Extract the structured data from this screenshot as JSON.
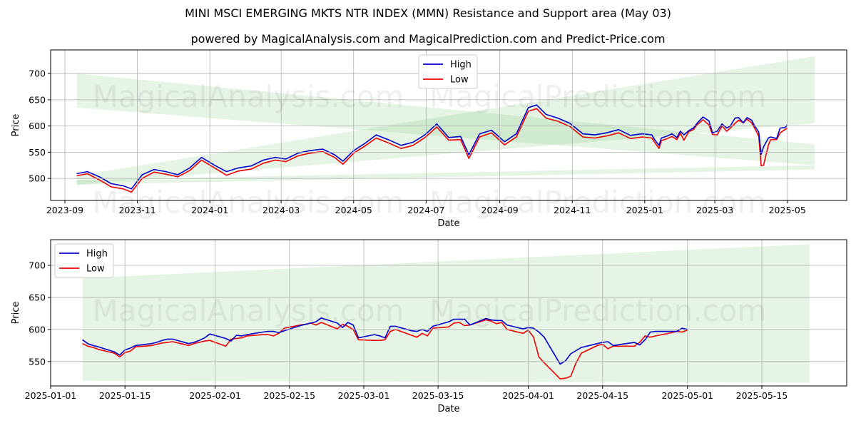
{
  "title": "MINI MSCI EMERGING MKTS NTR INDEX (MMN) Resistance and Support area (May 03)",
  "subtitle": "powered by MagicalAnalysis.com and MagicalPrediction.com and Predict-Price.com",
  "watermarks": [
    "MagicalAnalysis.com",
    "MagicalPrediction.com"
  ],
  "colors": {
    "high": "#0000cc",
    "low": "#ee0000",
    "band": "#4caf50"
  },
  "chart_data": [
    {
      "type": "line",
      "xlabel": "Date",
      "ylabel": "Price",
      "xlim": [
        "2023-08-20",
        "2025-06-20"
      ],
      "ylim": [
        458,
        745
      ],
      "xticks": [
        "2023-09",
        "2023-11",
        "2024-01",
        "2024-03",
        "2024-05",
        "2024-07",
        "2024-09",
        "2024-11",
        "2025-01",
        "2025-03",
        "2025-05"
      ],
      "yticks": [
        500,
        550,
        600,
        650,
        700
      ],
      "grid": true,
      "legend": "upper center",
      "bands": [
        {
          "x": [
            "2023-09-11",
            "2025-05-24"
          ],
          "upper": [
            700,
            565
          ],
          "lower": [
            635,
            525
          ]
        },
        {
          "x": [
            "2023-09-11",
            "2025-05-24"
          ],
          "upper": [
            505,
            733
          ],
          "lower": [
            488,
            605
          ]
        },
        {
          "x": [
            "2023-09-11",
            "2025-05-24"
          ],
          "upper": [
            497,
            525
          ],
          "lower": [
            488,
            517
          ]
        }
      ],
      "series": [
        {
          "name": "High",
          "x": [
            "2023-09-11",
            "2023-09-20",
            "2023-10-01",
            "2023-10-10",
            "2023-10-20",
            "2023-10-27",
            "2023-11-05",
            "2023-11-15",
            "2023-11-25",
            "2023-12-05",
            "2023-12-15",
            "2023-12-25",
            "2024-01-05",
            "2024-01-15",
            "2024-01-25",
            "2024-02-05",
            "2024-02-15",
            "2024-02-25",
            "2024-03-05",
            "2024-03-15",
            "2024-03-25",
            "2024-04-05",
            "2024-04-15",
            "2024-04-22",
            "2024-05-01",
            "2024-05-10",
            "2024-05-20",
            "2024-05-30",
            "2024-06-10",
            "2024-06-20",
            "2024-06-30",
            "2024-07-10",
            "2024-07-20",
            "2024-07-30",
            "2024-08-06",
            "2024-08-15",
            "2024-08-25",
            "2024-09-05",
            "2024-09-15",
            "2024-09-25",
            "2024-10-02",
            "2024-10-10",
            "2024-10-20",
            "2024-10-30",
            "2024-11-10",
            "2024-11-20",
            "2024-11-30",
            "2024-12-10",
            "2024-12-20",
            "2024-12-30",
            "2025-01-07",
            "2025-01-09",
            "2025-01-13",
            "2025-01-15",
            "2025-01-20",
            "2025-01-24",
            "2025-01-28",
            "2025-01-31",
            "2025-02-03",
            "2025-02-07",
            "2025-02-11",
            "2025-02-14",
            "2025-02-19",
            "2025-02-24",
            "2025-02-27",
            "2025-03-03",
            "2025-03-07",
            "2025-03-11",
            "2025-03-14",
            "2025-03-18",
            "2025-03-21",
            "2025-03-25",
            "2025-03-28",
            "2025-04-01",
            "2025-04-03",
            "2025-04-07",
            "2025-04-09",
            "2025-04-11",
            "2025-04-15",
            "2025-04-17",
            "2025-04-22",
            "2025-04-25",
            "2025-04-29",
            "2025-05-01"
          ],
          "values": [
            509,
            513,
            502,
            490,
            486,
            480,
            507,
            517,
            513,
            507,
            520,
            540,
            525,
            513,
            520,
            524,
            535,
            540,
            537,
            548,
            553,
            556,
            545,
            533,
            553,
            566,
            583,
            574,
            563,
            569,
            583,
            604,
            578,
            580,
            545,
            585,
            592,
            570,
            585,
            635,
            640,
            622,
            615,
            605,
            585,
            583,
            587,
            593,
            582,
            585,
            583,
            575,
            563,
            577,
            581,
            585,
            578,
            590,
            583,
            591,
            596,
            605,
            617,
            610,
            587,
            590,
            604,
            596,
            600,
            615,
            616,
            606,
            616,
            611,
            602,
            588,
            546,
            560,
            577,
            579,
            576,
            596,
            597,
            602
          ]
        },
        {
          "name": "Low",
          "x": [
            "2023-09-11",
            "2023-09-20",
            "2023-10-01",
            "2023-10-10",
            "2023-10-20",
            "2023-10-27",
            "2023-11-05",
            "2023-11-15",
            "2023-11-25",
            "2023-12-05",
            "2023-12-15",
            "2023-12-25",
            "2024-01-05",
            "2024-01-15",
            "2024-01-25",
            "2024-02-05",
            "2024-02-15",
            "2024-02-25",
            "2024-03-05",
            "2024-03-15",
            "2024-03-25",
            "2024-04-05",
            "2024-04-15",
            "2024-04-22",
            "2024-05-01",
            "2024-05-10",
            "2024-05-20",
            "2024-05-30",
            "2024-06-10",
            "2024-06-20",
            "2024-06-30",
            "2024-07-10",
            "2024-07-20",
            "2024-07-30",
            "2024-08-06",
            "2024-08-15",
            "2024-08-25",
            "2024-09-05",
            "2024-09-15",
            "2024-09-25",
            "2024-10-02",
            "2024-10-10",
            "2024-10-20",
            "2024-10-30",
            "2024-11-10",
            "2024-11-20",
            "2024-11-30",
            "2024-12-10",
            "2024-12-20",
            "2024-12-30",
            "2025-01-07",
            "2025-01-09",
            "2025-01-13",
            "2025-01-15",
            "2025-01-20",
            "2025-01-24",
            "2025-01-28",
            "2025-01-31",
            "2025-02-03",
            "2025-02-07",
            "2025-02-11",
            "2025-02-14",
            "2025-02-19",
            "2025-02-24",
            "2025-02-27",
            "2025-03-03",
            "2025-03-07",
            "2025-03-11",
            "2025-03-14",
            "2025-03-18",
            "2025-03-21",
            "2025-03-25",
            "2025-03-28",
            "2025-04-01",
            "2025-04-03",
            "2025-04-07",
            "2025-04-09",
            "2025-04-11",
            "2025-04-15",
            "2025-04-17",
            "2025-04-22",
            "2025-04-25",
            "2025-04-29",
            "2025-05-01"
          ],
          "values": [
            505,
            509,
            496,
            484,
            480,
            474,
            500,
            512,
            508,
            503,
            515,
            535,
            520,
            506,
            514,
            518,
            529,
            535,
            532,
            543,
            548,
            551,
            540,
            527,
            548,
            561,
            577,
            568,
            557,
            563,
            578,
            598,
            573,
            574,
            538,
            579,
            587,
            564,
            579,
            628,
            633,
            615,
            609,
            599,
            579,
            577,
            581,
            587,
            576,
            579,
            577,
            570,
            557,
            572,
            576,
            580,
            574,
            586,
            573,
            589,
            593,
            602,
            612,
            602,
            584,
            583,
            600,
            590,
            596,
            605,
            611,
            606,
            613,
            606,
            598,
            580,
            524,
            525,
            563,
            574,
            574,
            587,
            593,
            596
          ]
        }
      ]
    },
    {
      "type": "line",
      "xlabel": "Date",
      "ylabel": "Price",
      "xlim": [
        "2025-01-01",
        "2025-05-31"
      ],
      "ylim": [
        512,
        740
      ],
      "xticks": [
        "2025-01-01",
        "2025-01-15",
        "2025-02-01",
        "2025-02-15",
        "2025-03-01",
        "2025-03-15",
        "2025-04-01",
        "2025-04-15",
        "2025-05-01",
        "2025-05-15"
      ],
      "yticks": [
        550,
        600,
        650,
        700
      ],
      "grid": true,
      "legend": "upper left",
      "bands": [
        {
          "x": [
            "2025-01-07",
            "2025-05-24"
          ],
          "upper": [
            680,
            733
          ],
          "lower": [
            627,
            605
          ]
        },
        {
          "x": [
            "2025-01-07",
            "2025-05-24"
          ],
          "upper": [
            627,
            605
          ],
          "lower": [
            542,
            525
          ]
        },
        {
          "x": [
            "2025-01-07",
            "2025-05-24"
          ],
          "upper": [
            542,
            525
          ],
          "lower": [
            520,
            517
          ]
        }
      ],
      "series": [
        {
          "name": "High",
          "x": [
            "2025-01-07",
            "2025-01-08",
            "2025-01-09",
            "2025-01-10",
            "2025-01-13",
            "2025-01-14",
            "2025-01-15",
            "2025-01-16",
            "2025-01-17",
            "2025-01-20",
            "2025-01-21",
            "2025-01-22",
            "2025-01-23",
            "2025-01-24",
            "2025-01-27",
            "2025-01-28",
            "2025-01-29",
            "2025-01-30",
            "2025-01-31",
            "2025-02-03",
            "2025-02-04",
            "2025-02-05",
            "2025-02-06",
            "2025-02-07",
            "2025-02-10",
            "2025-02-11",
            "2025-02-12",
            "2025-02-13",
            "2025-02-14",
            "2025-02-17",
            "2025-02-18",
            "2025-02-19",
            "2025-02-20",
            "2025-02-21",
            "2025-02-24",
            "2025-02-25",
            "2025-02-26",
            "2025-02-27",
            "2025-02-28",
            "2025-03-03",
            "2025-03-04",
            "2025-03-05",
            "2025-03-06",
            "2025-03-07",
            "2025-03-10",
            "2025-03-11",
            "2025-03-12",
            "2025-03-13",
            "2025-03-14",
            "2025-03-17",
            "2025-03-18",
            "2025-03-19",
            "2025-03-20",
            "2025-03-21",
            "2025-03-24",
            "2025-03-25",
            "2025-03-26",
            "2025-03-27",
            "2025-03-28",
            "2025-03-31",
            "2025-04-01",
            "2025-04-02",
            "2025-04-03",
            "2025-04-04",
            "2025-04-07",
            "2025-04-08",
            "2025-04-09",
            "2025-04-10",
            "2025-04-11",
            "2025-04-14",
            "2025-04-15",
            "2025-04-16",
            "2025-04-17",
            "2025-04-21",
            "2025-04-22",
            "2025-04-23",
            "2025-04-24",
            "2025-04-25",
            "2025-04-28",
            "2025-04-29",
            "2025-04-30",
            "2025-05-01"
          ],
          "values": [
            584,
            578,
            575,
            573,
            565,
            560,
            568,
            571,
            575,
            578,
            580,
            583,
            585,
            585,
            578,
            580,
            583,
            587,
            593,
            586,
            582,
            591,
            590,
            592,
            596,
            597,
            597,
            595,
            598,
            606,
            608,
            610,
            612,
            618,
            610,
            603,
            611,
            607,
            587,
            592,
            590,
            587,
            605,
            605,
            598,
            597,
            600,
            597,
            605,
            612,
            616,
            616,
            616,
            607,
            617,
            615,
            614,
            614,
            607,
            601,
            603,
            602,
            596,
            588,
            546,
            551,
            562,
            567,
            572,
            578,
            580,
            581,
            575,
            580,
            576,
            584,
            596,
            597,
            597,
            597,
            602,
            600
          ]
        },
        {
          "name": "Low",
          "x": [
            "2025-01-07",
            "2025-01-08",
            "2025-01-09",
            "2025-01-10",
            "2025-01-13",
            "2025-01-14",
            "2025-01-15",
            "2025-01-16",
            "2025-01-17",
            "2025-01-20",
            "2025-01-21",
            "2025-01-22",
            "2025-01-23",
            "2025-01-24",
            "2025-01-27",
            "2025-01-28",
            "2025-01-29",
            "2025-01-30",
            "2025-01-31",
            "2025-02-03",
            "2025-02-04",
            "2025-02-05",
            "2025-02-06",
            "2025-02-07",
            "2025-02-10",
            "2025-02-11",
            "2025-02-12",
            "2025-02-13",
            "2025-02-14",
            "2025-02-17",
            "2025-02-18",
            "2025-02-19",
            "2025-02-20",
            "2025-02-21",
            "2025-02-24",
            "2025-02-25",
            "2025-02-26",
            "2025-02-27",
            "2025-02-28",
            "2025-03-03",
            "2025-03-04",
            "2025-03-05",
            "2025-03-06",
            "2025-03-07",
            "2025-03-10",
            "2025-03-11",
            "2025-03-12",
            "2025-03-13",
            "2025-03-14",
            "2025-03-17",
            "2025-03-18",
            "2025-03-19",
            "2025-03-20",
            "2025-03-21",
            "2025-03-24",
            "2025-03-25",
            "2025-03-26",
            "2025-03-27",
            "2025-03-28",
            "2025-03-31",
            "2025-04-01",
            "2025-04-02",
            "2025-04-03",
            "2025-04-04",
            "2025-04-07",
            "2025-04-08",
            "2025-04-09",
            "2025-04-10",
            "2025-04-11",
            "2025-04-14",
            "2025-04-15",
            "2025-04-16",
            "2025-04-17",
            "2025-04-21",
            "2025-04-22",
            "2025-04-23",
            "2025-04-24",
            "2025-04-25",
            "2025-04-28",
            "2025-04-29",
            "2025-04-30",
            "2025-05-01"
          ],
          "values": [
            578,
            574,
            572,
            569,
            563,
            557,
            564,
            566,
            573,
            575,
            577,
            579,
            580,
            581,
            575,
            578,
            580,
            582,
            583,
            574,
            585,
            586,
            587,
            590,
            592,
            592,
            590,
            594,
            602,
            607,
            608,
            610,
            607,
            611,
            601,
            608,
            605,
            600,
            584,
            583,
            583,
            584,
            597,
            600,
            591,
            588,
            594,
            590,
            602,
            604,
            610,
            611,
            606,
            607,
            615,
            613,
            609,
            611,
            600,
            594,
            599,
            588,
            557,
            548,
            523,
            524,
            527,
            548,
            563,
            575,
            577,
            570,
            574,
            574,
            580,
            590,
            588,
            590,
            595,
            597,
            596,
            599
          ]
        }
      ]
    }
  ]
}
